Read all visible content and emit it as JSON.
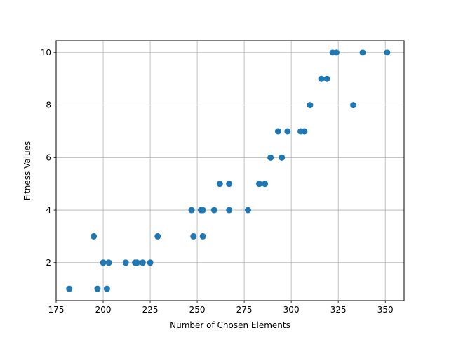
{
  "chart_data": {
    "type": "scatter",
    "title": "",
    "xlabel": "Number of Chosen Elements",
    "ylabel": "Fitness Values",
    "xlim": [
      175,
      360
    ],
    "ylim": [
      0.55,
      10.45
    ],
    "x_ticks": [
      175,
      200,
      225,
      250,
      275,
      300,
      325,
      350
    ],
    "y_ticks": [
      2,
      4,
      6,
      8,
      10
    ],
    "grid": true,
    "marker_color": "#1f77b4",
    "points": [
      {
        "x": 182,
        "y": 1
      },
      {
        "x": 197,
        "y": 1
      },
      {
        "x": 202,
        "y": 1
      },
      {
        "x": 195,
        "y": 3
      },
      {
        "x": 200,
        "y": 2
      },
      {
        "x": 203,
        "y": 2
      },
      {
        "x": 212,
        "y": 2
      },
      {
        "x": 217,
        "y": 2
      },
      {
        "x": 218,
        "y": 2
      },
      {
        "x": 221,
        "y": 2
      },
      {
        "x": 225,
        "y": 2
      },
      {
        "x": 229,
        "y": 3
      },
      {
        "x": 247,
        "y": 4
      },
      {
        "x": 248,
        "y": 3
      },
      {
        "x": 252,
        "y": 4
      },
      {
        "x": 253,
        "y": 4
      },
      {
        "x": 253,
        "y": 3
      },
      {
        "x": 259,
        "y": 4
      },
      {
        "x": 262,
        "y": 5
      },
      {
        "x": 267,
        "y": 5
      },
      {
        "x": 267,
        "y": 4
      },
      {
        "x": 277,
        "y": 4
      },
      {
        "x": 283,
        "y": 5
      },
      {
        "x": 286,
        "y": 5
      },
      {
        "x": 289,
        "y": 6
      },
      {
        "x": 293,
        "y": 7
      },
      {
        "x": 295,
        "y": 6
      },
      {
        "x": 298,
        "y": 7
      },
      {
        "x": 305,
        "y": 7
      },
      {
        "x": 307,
        "y": 7
      },
      {
        "x": 310,
        "y": 8
      },
      {
        "x": 316,
        "y": 9
      },
      {
        "x": 319,
        "y": 9
      },
      {
        "x": 322,
        "y": 10
      },
      {
        "x": 324,
        "y": 10
      },
      {
        "x": 333,
        "y": 8
      },
      {
        "x": 338,
        "y": 10
      },
      {
        "x": 351,
        "y": 10
      }
    ]
  }
}
